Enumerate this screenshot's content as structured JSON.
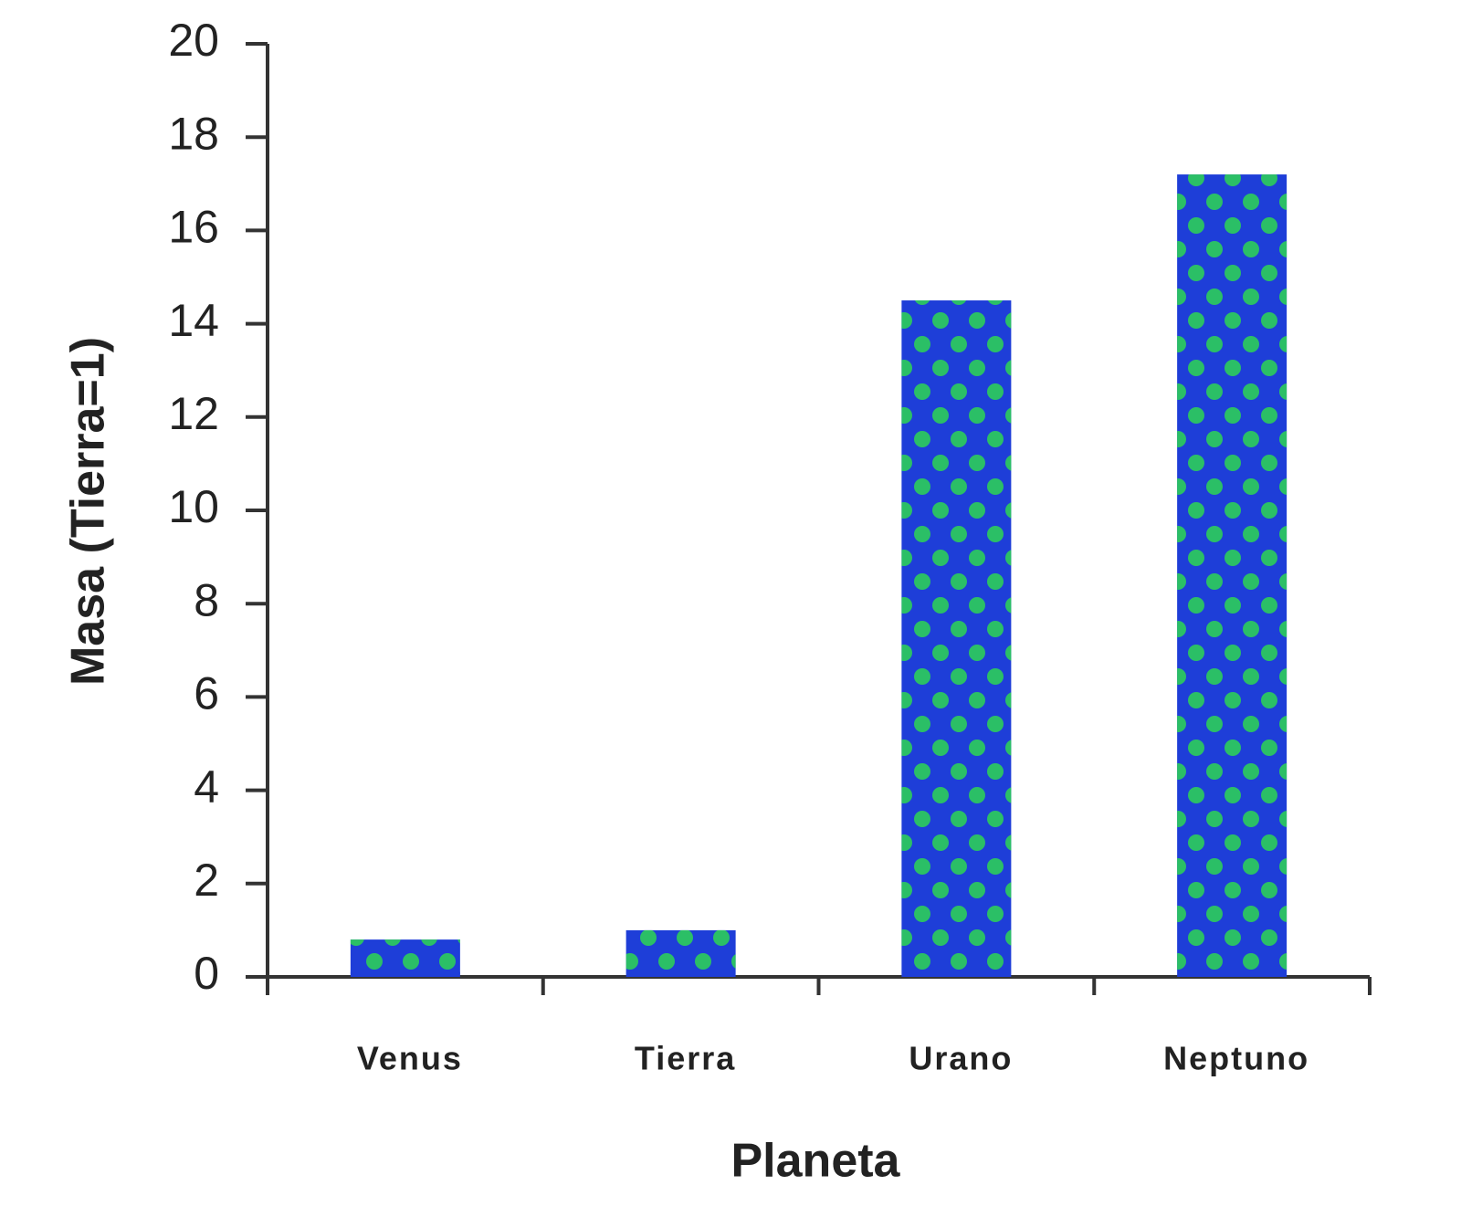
{
  "chart_data": {
    "type": "bar",
    "x_label": "Planeta",
    "y_label": "Masa (Tierra=1)",
    "categories": [
      "Venus",
      "Tierra",
      "Urano",
      "Neptuno"
    ],
    "values": [
      0.8,
      1,
      14.5,
      17.2
    ],
    "color": "#1e3ed8",
    "ylim": [
      0,
      20
    ],
    "yticks": [
      0,
      2,
      4,
      6,
      8,
      10,
      12,
      14,
      16,
      18,
      20
    ],
    "grid": false
  }
}
